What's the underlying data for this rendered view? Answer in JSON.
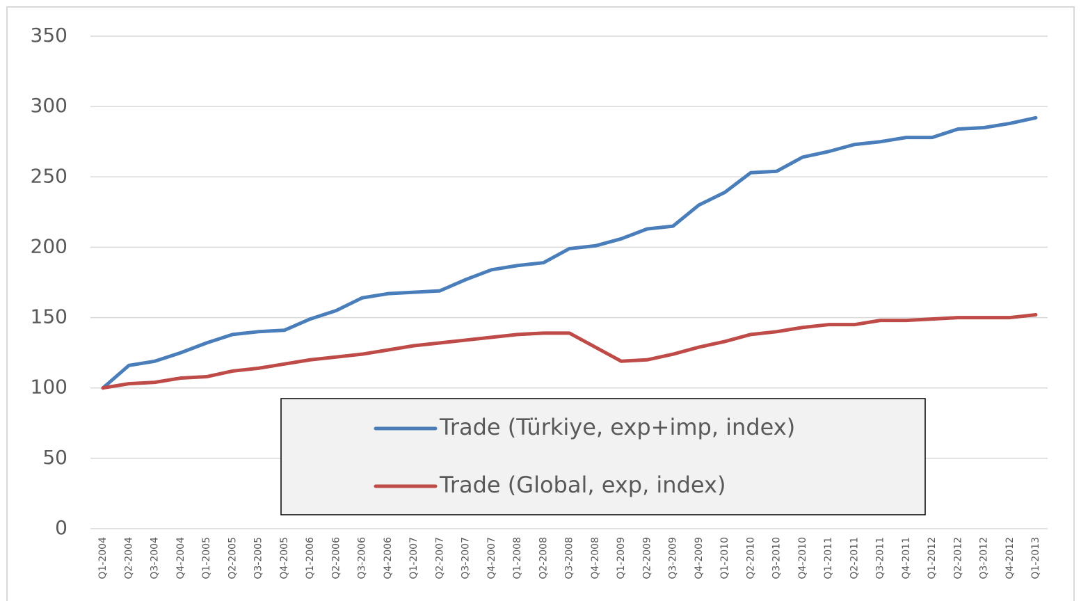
{
  "chart_data": {
    "type": "line",
    "categories": [
      "Q1-2004",
      "Q2-2004",
      "Q3-2004",
      "Q4-2004",
      "Q1-2005",
      "Q2-2005",
      "Q3-2005",
      "Q4-2005",
      "Q1-2006",
      "Q2-2006",
      "Q3-2006",
      "Q4-2006",
      "Q1-2007",
      "Q2-2007",
      "Q3-2007",
      "Q4-2007",
      "Q1-2008",
      "Q2-2008",
      "Q3-2008",
      "Q4-2008",
      "Q1-2009",
      "Q2-2009",
      "Q3-2009",
      "Q4-2009",
      "Q1-2010",
      "Q2-2010",
      "Q3-2010",
      "Q4-2010",
      "Q1-2011",
      "Q2-2011",
      "Q3-2011",
      "Q4-2011",
      "Q1-2012",
      "Q2-2012",
      "Q3-2012",
      "Q4-2012",
      "Q1-2013"
    ],
    "series": [
      {
        "name": "Trade (Türkiye, exp+imp, index)",
        "color": "#4a7ebb",
        "values": [
          100,
          116,
          119,
          125,
          132,
          138,
          140,
          141,
          149,
          155,
          164,
          167,
          168,
          169,
          177,
          184,
          187,
          189,
          199,
          201,
          206,
          213,
          215,
          230,
          239,
          253,
          254,
          264,
          268,
          273,
          275,
          278,
          278,
          284,
          285,
          288,
          292
        ]
      },
      {
        "name": "Trade (Global, exp, index)",
        "color": "#be4b48",
        "values": [
          100,
          103,
          104,
          107,
          108,
          112,
          114,
          117,
          120,
          122,
          124,
          127,
          130,
          132,
          134,
          136,
          138,
          139,
          139,
          129,
          119,
          120,
          124,
          129,
          133,
          138,
          140,
          143,
          145,
          145,
          148,
          148,
          149,
          150,
          150,
          150,
          152
        ]
      }
    ],
    "ylim": [
      0,
      350
    ],
    "yticks": [
      0,
      50,
      100,
      150,
      200,
      250,
      300,
      350
    ],
    "grid": true
  }
}
